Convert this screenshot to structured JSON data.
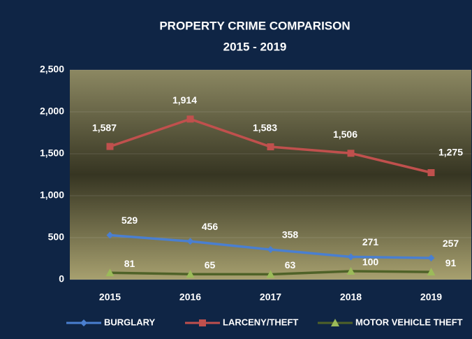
{
  "chart_data": {
    "type": "line",
    "title": "PROPERTY CRIME COMPARISON",
    "subtitle": "2015 - 2019",
    "categories": [
      "2015",
      "2016",
      "2017",
      "2018",
      "2019"
    ],
    "series": [
      {
        "name": "BURGLARY",
        "color": "#4a7fd0",
        "marker": "diamond",
        "values": [
          529,
          456,
          358,
          271,
          257
        ]
      },
      {
        "name": "LARCENY/THEFT",
        "color": "#c0504d",
        "marker": "square",
        "values": [
          1587,
          1914,
          1583,
          1506,
          1275
        ],
        "value_labels": [
          "1,587",
          "1,914",
          "1,583",
          "1,506",
          "1,275"
        ]
      },
      {
        "name": "MOTOR VEHICLE THEFT",
        "color": "#4f6228",
        "marker_color": "#9bbb59",
        "marker": "triangle",
        "values": [
          81,
          65,
          63,
          100,
          91
        ]
      }
    ],
    "ylim": [
      0,
      2500
    ],
    "yticks": [
      0,
      500,
      {
        "value": 1000,
        "label": "1,000"
      },
      {
        "value": 1500,
        "label": "1,500"
      },
      {
        "value": 2000,
        "label": "2,000"
      },
      {
        "value": 2500,
        "label": "2,500"
      }
    ],
    "grid": true,
    "legend": "bottom"
  }
}
